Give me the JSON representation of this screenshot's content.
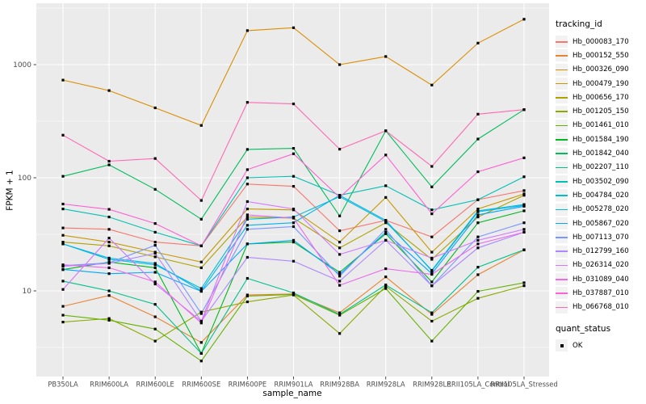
{
  "chart_data": {
    "type": "line",
    "title": "",
    "xlabel": "sample_name",
    "ylabel": "FPKM + 1",
    "y_scale": "log10",
    "y_ticks": [
      10,
      100,
      1000
    ],
    "y_minor_ticks": [
      3.162,
      31.62,
      316.2,
      3162
    ],
    "y_range_approx": [
      1.8,
      3400
    ],
    "grid": "on",
    "panel_bg": "#EBEBEB",
    "grid_color": "#FFFFFF",
    "tick_label_color": "#4D4D4D",
    "point_color": "#000000",
    "point_shape": "square",
    "legend_title": "tracking_id",
    "legend_position": "right",
    "x_categories": [
      "PB350LA",
      "RRIM600LA",
      "RRIM600LE",
      "RRIM600SE",
      "RRIM600PE",
      "RRIM901LA",
      "RRIM928BA",
      "RRIM928LA",
      "RRIM928LE",
      "RRII105LA_Control",
      "RRII105LA_Stressed"
    ],
    "series": [
      {
        "name": "Hb_000083_170",
        "color": "#F8766D",
        "values": [
          36,
          35,
          27,
          25,
          88,
          84,
          34,
          42,
          30,
          64,
          77
        ]
      },
      {
        "name": "Hb_000152_550",
        "color": "#EA8331",
        "values": [
          7.3,
          9.1,
          5.9,
          3.5,
          9.2,
          9.4,
          6.4,
          13.3,
          6.2,
          13.9,
          23
        ]
      },
      {
        "name": "Hb_000326_090",
        "color": "#DB8E00",
        "values": [
          730,
          590,
          415,
          290,
          2000,
          2120,
          1000,
          1180,
          660,
          1550,
          2520
        ]
      },
      {
        "name": "Hb_000479_190",
        "color": "#C79800",
        "values": [
          31,
          27,
          22,
          18,
          53,
          52,
          27,
          67,
          22,
          53,
          72
        ]
      },
      {
        "name": "Hb_000656_170",
        "color": "#AEA200",
        "values": [
          27,
          25,
          20,
          16,
          45,
          44,
          24,
          40,
          19,
          45,
          70
        ]
      },
      {
        "name": "Hb_001205_150",
        "color": "#8CAB00",
        "values": [
          5.3,
          5.7,
          3.6,
          6.5,
          8.0,
          9.2,
          4.2,
          11,
          5.4,
          8.6,
          11.1
        ]
      },
      {
        "name": "Hb_001461_010",
        "color": "#64B200",
        "values": [
          6.1,
          5.5,
          4.6,
          2.4,
          9.0,
          9.3,
          6.1,
          10.5,
          3.6,
          9.9,
          11.8
        ]
      },
      {
        "name": "Hb_001584_190",
        "color": "#00B81F",
        "values": [
          15.4,
          18,
          16,
          2.8,
          26,
          27,
          14.6,
          32,
          12,
          40,
          51
        ]
      },
      {
        "name": "Hb_001842_040",
        "color": "#00BD5C",
        "values": [
          103,
          130,
          79,
          43,
          178,
          182,
          46,
          260,
          83,
          220,
          400
        ]
      },
      {
        "name": "Hb_002207_110",
        "color": "#00C08B",
        "values": [
          12.2,
          10,
          7.6,
          2.8,
          12.9,
          9.6,
          6.2,
          11.3,
          6.4,
          16.2,
          23.1
        ]
      },
      {
        "name": "Hb_003502_090",
        "color": "#00C0B2",
        "values": [
          53,
          45,
          33,
          25,
          100,
          103,
          70,
          85,
          52,
          64,
          102
        ]
      },
      {
        "name": "Hb_004784_020",
        "color": "#00BDD4",
        "values": [
          26,
          19,
          17,
          10.5,
          43,
          45,
          68,
          41,
          15.2,
          51,
          58
        ]
      },
      {
        "name": "Hb_005278_020",
        "color": "#00B5EE",
        "values": [
          26,
          19.5,
          17.5,
          10,
          38,
          40,
          70,
          42,
          15,
          50,
          57
        ]
      },
      {
        "name": "Hb_005867_020",
        "color": "#00A7FF",
        "values": [
          15.5,
          14.2,
          14.6,
          9.9,
          26,
          28,
          14,
          33,
          14.2,
          47,
          56
        ]
      },
      {
        "name": "Hb_007113_070",
        "color": "#7997FF",
        "values": [
          16.7,
          17.7,
          25.3,
          6.3,
          35,
          37,
          13.5,
          35,
          11.1,
          30,
          40
        ]
      },
      {
        "name": "Hb_012799_160",
        "color": "#AC88FF",
        "values": [
          16.5,
          17.5,
          21.5,
          5.4,
          19.8,
          18.3,
          12.2,
          28,
          11.1,
          24,
          33
        ]
      },
      {
        "name": "Hb_026314_020",
        "color": "#D277FF",
        "values": [
          10.3,
          29.3,
          11.5,
          5.4,
          61.6,
          53,
          21,
          28,
          19.5,
          28,
          35
        ]
      },
      {
        "name": "Hb_031089_040",
        "color": "#EC69EF",
        "values": [
          17,
          16,
          12,
          5.2,
          47,
          44,
          11.2,
          15.7,
          14,
          26,
          33
        ]
      },
      {
        "name": "Hb_037887_010",
        "color": "#FD61D3",
        "values": [
          58.6,
          52.6,
          39.4,
          25,
          118,
          163,
          67,
          159,
          48,
          113,
          150
        ]
      },
      {
        "name": "Hb_066768_010",
        "color": "#FF67B3",
        "values": [
          238,
          140,
          148,
          63,
          464,
          450,
          179,
          260,
          126,
          365,
          400
        ]
      }
    ],
    "secondary_legend": {
      "title": "quant_status",
      "items": [
        {
          "label": "OK",
          "marker": "black-square"
        }
      ]
    }
  }
}
